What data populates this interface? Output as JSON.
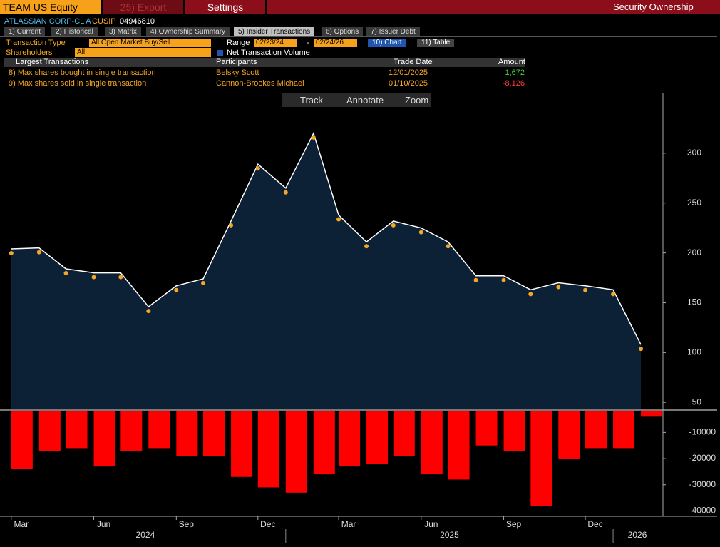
{
  "header": {
    "ticker": "TEAM US Equity",
    "export": "25) Export",
    "settings": "Settings",
    "security_ownership": "Security Ownership"
  },
  "security": {
    "name": "ATLASSIAN CORP-CL A",
    "cusip_label": "CUSIP",
    "cusip": "04946810"
  },
  "tabs": [
    "1) Current",
    "2) Historical",
    "3) Matrix",
    "4) Ownership Summary",
    "5) Insider Transactions",
    "6) Options",
    "7) Issuer Debt"
  ],
  "filters": {
    "transaction_type_label": "Transaction Type",
    "transaction_type": "All Open Market Buy/Sell",
    "range_label": "Range",
    "range_start": "02/23/24",
    "range_sep": "-",
    "range_end": "02/24/26",
    "chart_button": "10) Chart",
    "table_button": "11) Table",
    "shareholders_label": "Shareholders",
    "shareholders": "All",
    "net_volume_label": "Net Transaction Volume"
  },
  "table": {
    "headers": [
      "Largest Transactions",
      "Participants",
      "Trade Date",
      "Amount"
    ],
    "rows": [
      [
        "8) Max shares bought in single transaction",
        "Belsky Scott",
        "12/01/2025",
        "1,672"
      ],
      [
        "9) Max shares sold in single transaction",
        "Cannon-Brookes Michael",
        "01/10/2025",
        "-8,126"
      ]
    ]
  },
  "toolbar": [
    "Track",
    "Annotate",
    "Zoom"
  ],
  "chart_data": [
    {
      "type": "area",
      "color": "#ffffff",
      "fill": "#0c2036",
      "x": [
        "2024-03",
        "2024-04",
        "2024-05",
        "2024-06",
        "2024-07",
        "2024-08",
        "2024-09",
        "2024-10",
        "2024-11",
        "2024-12",
        "2025-01",
        "2025-02",
        "2025-03",
        "2025-04",
        "2025-05",
        "2025-06",
        "2025-07",
        "2025-08",
        "2025-09",
        "2025-10",
        "2025-11",
        "2025-12",
        "2026-01",
        "2026-02"
      ],
      "values": [
        204,
        205,
        184,
        180,
        180,
        146,
        167,
        174,
        232,
        289,
        265,
        320,
        238,
        211,
        232,
        225,
        211,
        177,
        177,
        163,
        170,
        167,
        163,
        108
      ],
      "xlim": [
        "2024-02-23",
        "2026-02-24"
      ],
      "ylim": [
        43,
        345
      ],
      "yticks": [
        50,
        100,
        150,
        200,
        250,
        300
      ]
    },
    {
      "type": "bar",
      "color": "#ff0000",
      "x": [
        "2024-03",
        "2024-04",
        "2024-05",
        "2024-06",
        "2024-07",
        "2024-08",
        "2024-09",
        "2024-10",
        "2024-11",
        "2024-12",
        "2025-01",
        "2025-02",
        "2025-03",
        "2025-04",
        "2025-05",
        "2025-06",
        "2025-07",
        "2025-08",
        "2025-09",
        "2025-10",
        "2025-11",
        "2025-12",
        "2026-01",
        "2026-02"
      ],
      "values": [
        -24000,
        -17000,
        -16000,
        -23000,
        -17000,
        -16000,
        -19000,
        -19000,
        -27000,
        -31000,
        -33000,
        -26000,
        -23000,
        -22000,
        -19000,
        -26000,
        -28000,
        -15000,
        -17000,
        -38000,
        -20000,
        -16000,
        -16000,
        -4000
      ],
      "xlim": [
        "2024-02-23",
        "2026-02-24"
      ],
      "ylim": [
        -41500,
        -2000
      ],
      "yticks": [
        -10000,
        -20000,
        -30000,
        -40000
      ],
      "xticks": [
        {
          "value": "2024-03",
          "label": "Mar"
        },
        {
          "value": "2024-06",
          "label": "Jun"
        },
        {
          "value": "2024-09",
          "label": "Sep"
        },
        {
          "value": "2024-12",
          "label": "Dec"
        },
        {
          "value": "2025-03",
          "label": "Mar"
        },
        {
          "value": "2025-06",
          "label": "Jun"
        },
        {
          "value": "2025-09",
          "label": "Sep"
        },
        {
          "value": "2025-12",
          "label": "Dec"
        }
      ],
      "x_groups": [
        "2024",
        "2025",
        "2026"
      ]
    }
  ]
}
